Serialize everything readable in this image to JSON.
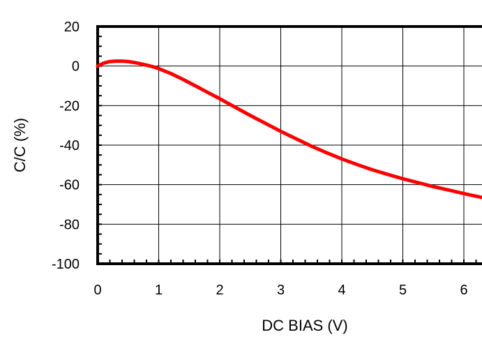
{
  "chart_data": {
    "type": "line",
    "title": "",
    "xlabel": "DC BIAS (V)",
    "ylabel": "C/C (%)",
    "xlim": [
      0,
      6.3
    ],
    "ylim": [
      -100,
      20
    ],
    "grid": true,
    "x_ticks": [
      0,
      1,
      2,
      3,
      4,
      5,
      6
    ],
    "y_ticks": [
      20,
      0,
      -20,
      -40,
      -60,
      -80,
      -100
    ],
    "x_tick_labels": [
      "0",
      "1",
      "2",
      "3",
      "4",
      "5",
      "6"
    ],
    "y_tick_labels": [
      "20",
      "0",
      "-20",
      "-40",
      "-60",
      "-80",
      "-100"
    ],
    "series": [
      {
        "color": "#ff0000",
        "x": [
          0,
          0.05,
          0.1,
          0.2,
          0.3,
          0.4,
          0.5,
          0.6,
          0.7,
          0.8,
          0.9,
          1.0,
          1.2,
          1.4,
          1.6,
          1.8,
          2.0,
          2.25,
          2.5,
          2.75,
          3.0,
          3.25,
          3.5,
          3.75,
          4.0,
          4.25,
          4.5,
          4.75,
          5.0,
          5.25,
          5.5,
          5.75,
          6.0,
          6.3
        ],
        "y": [
          0,
          0.8,
          1.5,
          2.3,
          2.5,
          2.5,
          2.3,
          1.8,
          1.2,
          0.5,
          -0.3,
          -1.3,
          -3.8,
          -6.8,
          -10.0,
          -13.3,
          -16.5,
          -20.8,
          -25.0,
          -29.0,
          -33.0,
          -36.8,
          -40.5,
          -43.8,
          -47.0,
          -49.8,
          -52.5,
          -54.8,
          -57.0,
          -59.0,
          -61.0,
          -62.7,
          -64.5,
          -66.5
        ]
      }
    ]
  }
}
